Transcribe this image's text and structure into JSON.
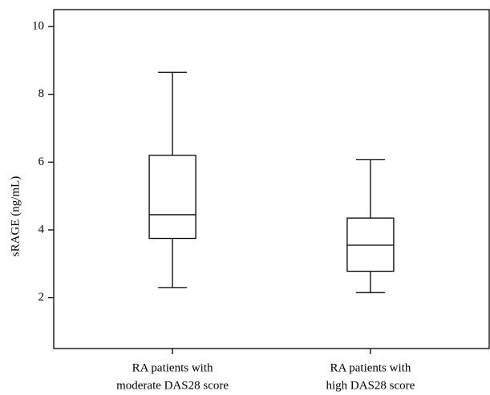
{
  "chart_data": {
    "type": "box",
    "y_label": "sRAGE (ng/mL)",
    "categories": [
      [
        "RA patients with",
        "moderate DAS28 score"
      ],
      [
        "RA patients with",
        "high DAS28 score"
      ]
    ],
    "boxes": [
      {
        "min": 2.3,
        "q1": 3.75,
        "median": 4.45,
        "q3": 6.2,
        "max": 8.65
      },
      {
        "min": 2.15,
        "q1": 2.78,
        "median": 3.55,
        "q3": 4.35,
        "max": 6.07
      }
    ],
    "ylim": [
      0.5,
      10.5
    ],
    "yticks": [
      2,
      4,
      6,
      8,
      10
    ]
  }
}
